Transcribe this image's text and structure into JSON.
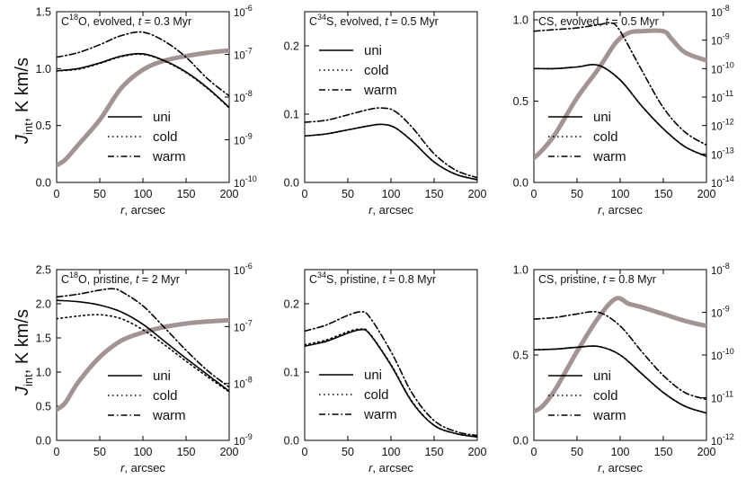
{
  "figure": {
    "ylabel_main": "J",
    "ylabel_sub": "int",
    "ylabel_rest": ", K km/s",
    "xlabel_var": "r",
    "xlabel_rest": ", arcsec"
  },
  "chart_data": [
    {
      "type": "line",
      "id": "c18o-evolved",
      "title": {
        "mol": "C",
        "iso": "18",
        "rest": "O, evolved, ",
        "tvar": "t",
        "tval": " = 0.3 Myr"
      },
      "xlabel": "r, arcsec",
      "ylabel": "Jint, K km/s",
      "xlim": [
        0,
        200
      ],
      "xticks": [
        "0",
        "50",
        "100",
        "150",
        "200"
      ],
      "ylim": [
        0,
        1.5
      ],
      "yticks": [
        "0.0",
        "0.5",
        "1.0",
        "1.5"
      ],
      "right_axis": {
        "scale": "log",
        "ticks": [
          "10^-10",
          "10^-9",
          "10^-8",
          "10^-7",
          "10^-6"
        ]
      },
      "legend": [
        "uni",
        "cold",
        "warm"
      ],
      "series": [
        {
          "name": "uni",
          "style": "solid",
          "x": [
            0,
            25,
            50,
            75,
            100,
            125,
            150,
            175,
            200
          ],
          "values": [
            0.98,
            1.0,
            1.05,
            1.11,
            1.13,
            1.07,
            0.97,
            0.83,
            0.66
          ]
        },
        {
          "name": "cold",
          "style": "dotted",
          "x": [
            0,
            25,
            50,
            75,
            100,
            125,
            150,
            175,
            200
          ],
          "values": [
            0.98,
            0.995,
            1.045,
            1.105,
            1.125,
            1.065,
            0.965,
            0.825,
            0.655
          ]
        },
        {
          "name": "warm",
          "style": "dashdot",
          "x": [
            0,
            25,
            50,
            75,
            100,
            125,
            150,
            175,
            200
          ],
          "values": [
            1.1,
            1.14,
            1.21,
            1.29,
            1.32,
            1.24,
            1.1,
            0.91,
            0.76
          ]
        },
        {
          "name": "abundance",
          "style": "thick-gray",
          "x": [
            0,
            10,
            25,
            50,
            75,
            100,
            125,
            150,
            175,
            200
          ],
          "values": [
            0.15,
            0.2,
            0.33,
            0.55,
            0.83,
            0.99,
            1.07,
            1.11,
            1.14,
            1.16
          ]
        }
      ]
    },
    {
      "type": "line",
      "id": "c34s-evolved",
      "title": {
        "mol": "C",
        "iso": "34",
        "rest": "S, evolved, ",
        "tvar": "t",
        "tval": " = 0.5 Myr"
      },
      "xlabel": "r, arcsec",
      "ylabel": "",
      "xlim": [
        0,
        200
      ],
      "xticks": [
        "0",
        "50",
        "100",
        "150",
        "200"
      ],
      "ylim": [
        0,
        0.25
      ],
      "yticks": [
        "0.0",
        "0.1",
        "0.2"
      ],
      "legend": [
        "uni",
        "cold",
        "warm"
      ],
      "series": [
        {
          "name": "uni",
          "style": "solid",
          "x": [
            0,
            25,
            50,
            75,
            90,
            105,
            125,
            150,
            175,
            200
          ],
          "values": [
            0.068,
            0.071,
            0.077,
            0.083,
            0.085,
            0.08,
            0.06,
            0.03,
            0.012,
            0.004
          ]
        },
        {
          "name": "cold",
          "style": "dotted",
          "x": [
            0,
            25,
            50,
            75,
            90,
            105,
            125,
            150,
            175,
            200
          ],
          "values": [
            0.068,
            0.071,
            0.077,
            0.083,
            0.085,
            0.08,
            0.06,
            0.03,
            0.012,
            0.004
          ]
        },
        {
          "name": "warm",
          "style": "dashdot",
          "x": [
            0,
            25,
            50,
            75,
            90,
            105,
            125,
            150,
            175,
            200
          ],
          "values": [
            0.088,
            0.091,
            0.099,
            0.107,
            0.109,
            0.104,
            0.08,
            0.042,
            0.018,
            0.007
          ]
        }
      ]
    },
    {
      "type": "line",
      "id": "cs-evolved",
      "title": {
        "mol": "CS",
        "iso": "",
        "rest": ", evolved, ",
        "tvar": "t",
        "tval": " = 0.5 Myr"
      },
      "xlabel": "r, arcsec",
      "ylabel": "",
      "xlim": [
        0,
        200
      ],
      "xticks": [
        "0",
        "50",
        "100",
        "150",
        "200"
      ],
      "ylim": [
        0,
        1.05
      ],
      "yticks": [
        "0.0",
        "0.5",
        "1.0"
      ],
      "right_axis": {
        "scale": "log",
        "ticks": [
          "10^-14",
          "10^-13",
          "10^-12",
          "10^-11",
          "10^-10",
          "10^-9",
          "10^-8"
        ]
      },
      "legend": [
        "uni",
        "cold",
        "warm"
      ],
      "series": [
        {
          "name": "uni",
          "style": "solid",
          "x": [
            0,
            25,
            50,
            75,
            100,
            125,
            150,
            175,
            200
          ],
          "values": [
            0.7,
            0.7,
            0.71,
            0.72,
            0.63,
            0.47,
            0.33,
            0.22,
            0.16
          ]
        },
        {
          "name": "cold",
          "style": "dotted",
          "x": [
            0,
            25,
            50,
            75,
            100,
            125,
            150,
            175,
            200
          ],
          "values": [
            0.7,
            0.7,
            0.71,
            0.72,
            0.63,
            0.47,
            0.33,
            0.22,
            0.16
          ]
        },
        {
          "name": "warm",
          "style": "dashdot",
          "x": [
            0,
            25,
            50,
            75,
            90,
            100,
            125,
            150,
            175,
            200
          ],
          "values": [
            0.93,
            0.94,
            0.95,
            0.97,
            0.98,
            0.93,
            0.69,
            0.46,
            0.31,
            0.23
          ]
        },
        {
          "name": "abundance",
          "style": "thick-gray",
          "x": [
            0,
            10,
            25,
            50,
            75,
            95,
            110,
            125,
            150,
            160,
            175,
            200
          ],
          "values": [
            0.15,
            0.2,
            0.3,
            0.52,
            0.7,
            0.86,
            0.92,
            0.93,
            0.93,
            0.88,
            0.8,
            0.75
          ]
        }
      ]
    },
    {
      "type": "line",
      "id": "c18o-pristine",
      "title": {
        "mol": "C",
        "iso": "18",
        "rest": "O, pristine, ",
        "tvar": "t",
        "tval": " = 2 Myr"
      },
      "xlabel": "r, arcsec",
      "ylabel": "Jint, K km/s",
      "xlim": [
        0,
        200
      ],
      "xticks": [
        "0",
        "50",
        "100",
        "150",
        "200"
      ],
      "ylim": [
        0,
        2.5
      ],
      "yticks": [
        "0.0",
        "0.5",
        "1.0",
        "1.5",
        "2.0",
        "2.5"
      ],
      "right_axis": {
        "scale": "log",
        "ticks": [
          "10^-9",
          "10^-8",
          "10^-7",
          "10^-6"
        ]
      },
      "legend": [
        "uni",
        "cold",
        "warm"
      ],
      "series": [
        {
          "name": "uni",
          "style": "solid",
          "x": [
            0,
            25,
            50,
            75,
            100,
            125,
            150,
            175,
            200
          ],
          "values": [
            2.05,
            2.03,
            1.98,
            1.88,
            1.7,
            1.45,
            1.2,
            0.96,
            0.72
          ]
        },
        {
          "name": "cold",
          "style": "dotted",
          "x": [
            0,
            25,
            50,
            75,
            100,
            125,
            150,
            175,
            200
          ],
          "values": [
            1.78,
            1.82,
            1.84,
            1.78,
            1.62,
            1.4,
            1.16,
            0.93,
            0.71
          ]
        },
        {
          "name": "warm",
          "style": "dashdot",
          "x": [
            0,
            25,
            50,
            65,
            75,
            100,
            125,
            150,
            175,
            200
          ],
          "values": [
            2.1,
            2.14,
            2.2,
            2.22,
            2.18,
            1.97,
            1.65,
            1.32,
            1.02,
            0.78
          ]
        },
        {
          "name": "abundance",
          "style": "thick-gray",
          "x": [
            0,
            10,
            25,
            50,
            75,
            100,
            125,
            150,
            175,
            200
          ],
          "values": [
            0.45,
            0.55,
            0.85,
            1.22,
            1.46,
            1.58,
            1.66,
            1.71,
            1.74,
            1.76
          ]
        }
      ]
    },
    {
      "type": "line",
      "id": "c34s-pristine",
      "title": {
        "mol": "C",
        "iso": "34",
        "rest": "S, pristine, ",
        "tvar": "t",
        "tval": " = 0.8 Myr"
      },
      "xlabel": "r, arcsec",
      "ylabel": "",
      "xlim": [
        0,
        200
      ],
      "xticks": [
        "0",
        "50",
        "100",
        "150",
        "200"
      ],
      "ylim": [
        0,
        0.25
      ],
      "yticks": [
        "0.0",
        "0.1",
        "0.2"
      ],
      "legend": [
        "uni",
        "cold",
        "warm"
      ],
      "series": [
        {
          "name": "uni",
          "style": "solid",
          "x": [
            0,
            25,
            50,
            65,
            75,
            100,
            125,
            150,
            175,
            200
          ],
          "values": [
            0.138,
            0.145,
            0.157,
            0.162,
            0.156,
            0.11,
            0.055,
            0.022,
            0.01,
            0.005
          ]
        },
        {
          "name": "cold",
          "style": "dotted",
          "x": [
            0,
            25,
            50,
            65,
            75,
            100,
            125,
            150,
            175,
            200
          ],
          "values": [
            0.14,
            0.147,
            0.159,
            0.163,
            0.157,
            0.111,
            0.056,
            0.022,
            0.01,
            0.005
          ]
        },
        {
          "name": "warm",
          "style": "dashdot",
          "x": [
            0,
            25,
            50,
            65,
            75,
            100,
            125,
            150,
            175,
            200
          ],
          "values": [
            0.16,
            0.169,
            0.183,
            0.188,
            0.181,
            0.13,
            0.068,
            0.029,
            0.013,
            0.007
          ]
        }
      ]
    },
    {
      "type": "line",
      "id": "cs-pristine",
      "title": {
        "mol": "CS",
        "iso": "",
        "rest": ", pristine, ",
        "tvar": "t",
        "tval": " = 0.8 Myr"
      },
      "xlabel": "r, arcsec",
      "ylabel": "",
      "xlim": [
        0,
        200
      ],
      "xticks": [
        "0",
        "50",
        "100",
        "150",
        "200"
      ],
      "ylim": [
        0,
        1.0
      ],
      "yticks": [
        "0.0",
        "0.5",
        "1.0"
      ],
      "right_axis": {
        "scale": "log",
        "ticks": [
          "10^-12",
          "10^-11",
          "10^-10",
          "10^-9",
          "10^-8"
        ]
      },
      "legend": [
        "uni",
        "cold",
        "warm"
      ],
      "series": [
        {
          "name": "uni",
          "style": "solid",
          "x": [
            0,
            25,
            50,
            75,
            100,
            125,
            150,
            175,
            200
          ],
          "values": [
            0.53,
            0.535,
            0.545,
            0.55,
            0.5,
            0.39,
            0.28,
            0.2,
            0.16
          ]
        },
        {
          "name": "cold",
          "style": "dotted",
          "x": [
            0,
            25,
            50,
            75,
            100,
            125,
            150,
            175,
            200
          ],
          "values": [
            0.53,
            0.535,
            0.545,
            0.55,
            0.5,
            0.39,
            0.28,
            0.2,
            0.16
          ]
        },
        {
          "name": "warm",
          "style": "dashdot",
          "x": [
            0,
            25,
            50,
            75,
            100,
            125,
            150,
            175,
            200
          ],
          "values": [
            0.71,
            0.72,
            0.74,
            0.75,
            0.67,
            0.52,
            0.38,
            0.28,
            0.24
          ]
        },
        {
          "name": "abundance",
          "style": "thick-gray",
          "x": [
            0,
            10,
            25,
            50,
            75,
            95,
            110,
            125,
            150,
            175,
            200
          ],
          "values": [
            0.17,
            0.2,
            0.3,
            0.52,
            0.72,
            0.83,
            0.8,
            0.78,
            0.74,
            0.7,
            0.67
          ]
        }
      ]
    }
  ]
}
